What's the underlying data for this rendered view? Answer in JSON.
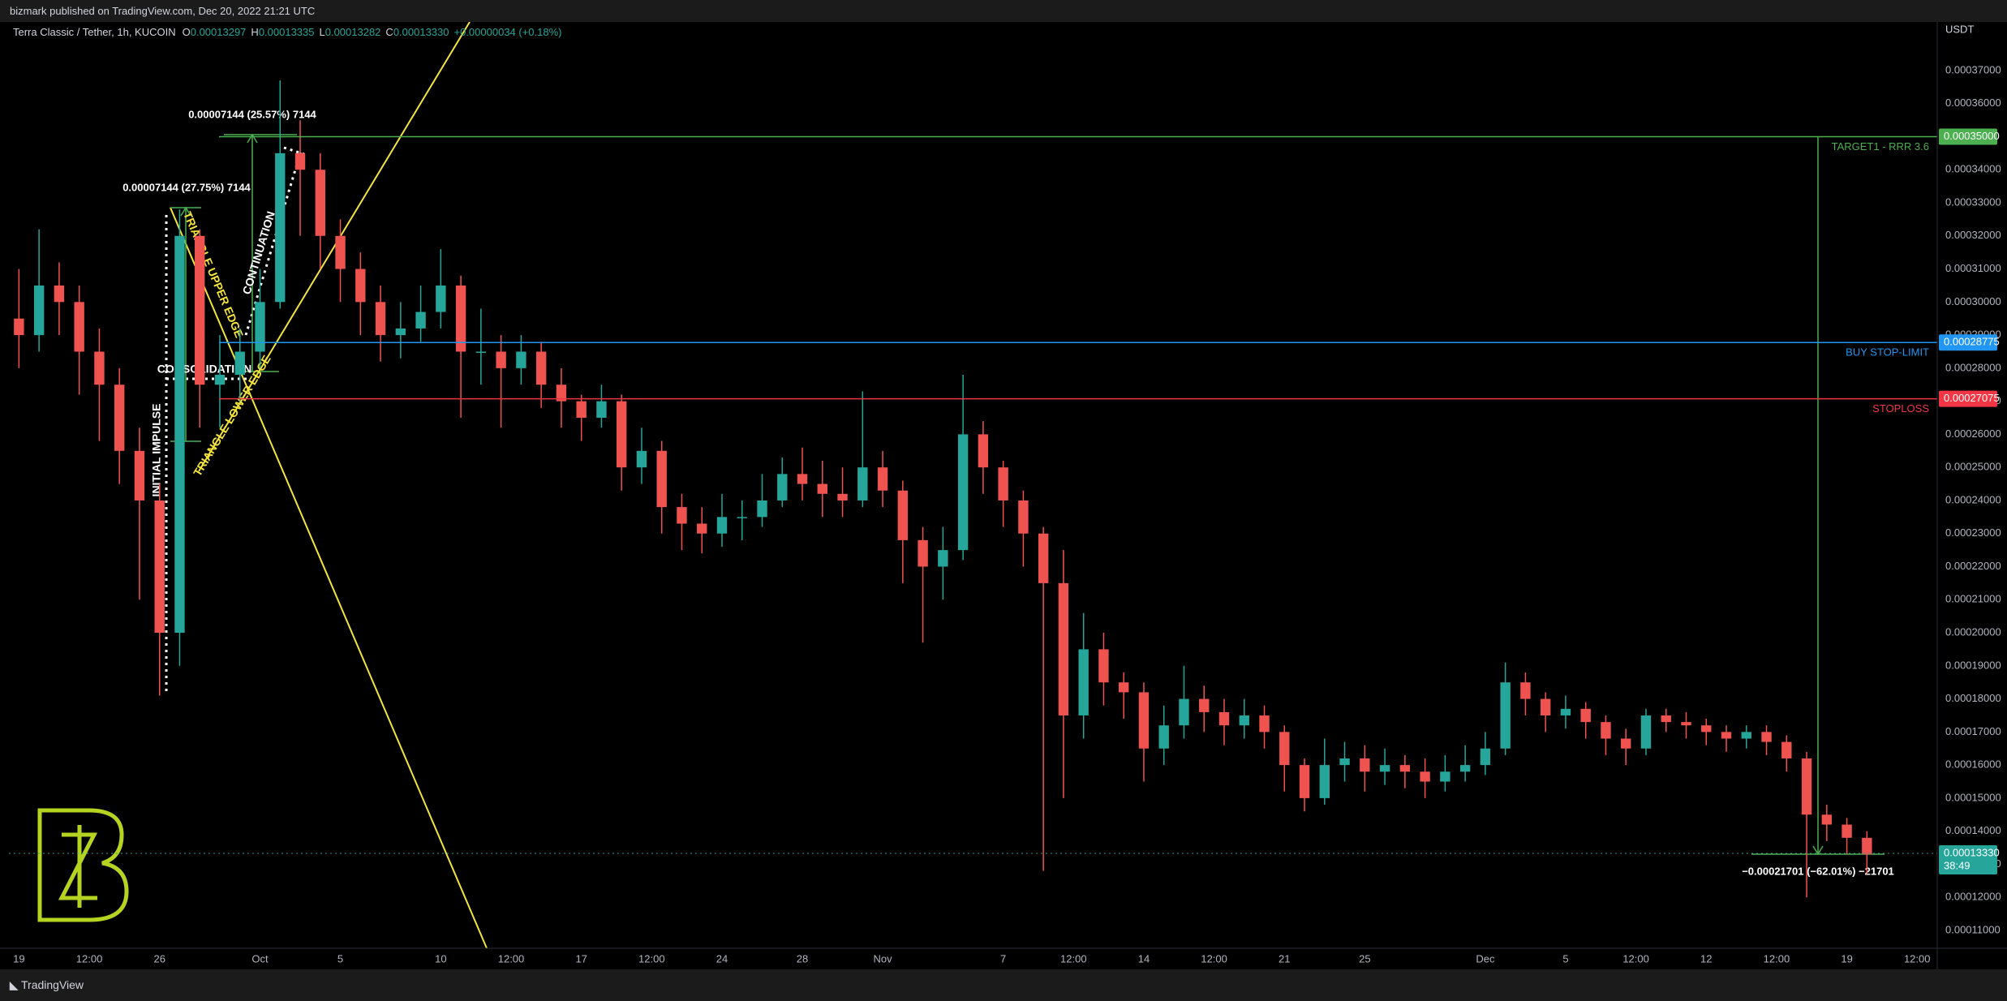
{
  "header": {
    "publisher": "bizmark published on TradingView.com, Dec 20, 2022 21:21 UTC",
    "footer": "TradingView"
  },
  "chart_data": {
    "type": "candlestick",
    "title": "Terra Classic / Tether, 1h, KUCOIN",
    "ohlc_legend": [
      {
        "key": "O",
        "value": "0.00013297"
      },
      {
        "key": "H",
        "value": "0.00013335"
      },
      {
        "key": "L",
        "value": "0.00013282"
      },
      {
        "key": "C",
        "value": "0.00013330"
      }
    ],
    "change": "+0.00000034 (+0.18%)",
    "currency": "USDT",
    "up_color": "#26a69a",
    "down_color": "#ef5350",
    "x": [
      0,
      1,
      2,
      3,
      4,
      5,
      6,
      7,
      8,
      9,
      10,
      11,
      12,
      13,
      14,
      15,
      16,
      17,
      18,
      19,
      20,
      21,
      22,
      23,
      24,
      25,
      26,
      27,
      28,
      29,
      30,
      31,
      32,
      33,
      34,
      35,
      36,
      37,
      38,
      39,
      40,
      41,
      42,
      43,
      44,
      45,
      46,
      47,
      48,
      49,
      50,
      51,
      52,
      53,
      54,
      55,
      56,
      57,
      58,
      59,
      60,
      61,
      62,
      63,
      64,
      65,
      66,
      67,
      68,
      69,
      70,
      71,
      72,
      73,
      74,
      75,
      76,
      77,
      78,
      79,
      80,
      81,
      82,
      83,
      84,
      85,
      86,
      87,
      88,
      89,
      90,
      91,
      92
    ],
    "open": [
      0.000295,
      0.00029,
      0.000305,
      0.0003,
      0.000285,
      0.000275,
      0.000255,
      0.00024,
      0.0002,
      0.00032,
      0.000275,
      0.000278,
      0.000285,
      0.0003,
      0.000345,
      0.00034,
      0.00032,
      0.00031,
      0.0003,
      0.00029,
      0.000292,
      0.000297,
      0.000305,
      0.000285,
      0.000285,
      0.00028,
      0.000285,
      0.000275,
      0.00027,
      0.000265,
      0.00027,
      0.00025,
      0.000255,
      0.000238,
      0.000233,
      0.00023,
      0.000235,
      0.000235,
      0.00024,
      0.000248,
      0.000245,
      0.000242,
      0.00024,
      0.00025,
      0.000243,
      0.000228,
      0.00022,
      0.000225,
      0.00026,
      0.00025,
      0.00024,
      0.00023,
      0.000215,
      0.000175,
      0.000195,
      0.000185,
      0.000182,
      0.000165,
      0.000172,
      0.00018,
      0.000176,
      0.000172,
      0.000175,
      0.00017,
      0.00016,
      0.00015,
      0.00016,
      0.000162,
      0.000158,
      0.00016,
      0.000158,
      0.000155,
      0.000158,
      0.00016,
      0.000165,
      0.000185,
      0.00018,
      0.000175,
      0.000177,
      0.000173,
      0.000168,
      0.000165,
      0.000175,
      0.000173,
      0.000172,
      0.00017,
      0.000168,
      0.00017,
      0.000167,
      0.000162,
      0.000145,
      0.000142,
      0.000138
    ],
    "high": [
      0.00031,
      0.000322,
      0.000312,
      0.000305,
      0.000292,
      0.00028,
      0.000262,
      0.000245,
      0.000328,
      0.000322,
      0.00029,
      0.000292,
      0.00031,
      0.000367,
      0.000355,
      0.000345,
      0.000325,
      0.000315,
      0.000305,
      0.0003,
      0.000305,
      0.000316,
      0.000308,
      0.000298,
      0.00029,
      0.00029,
      0.000288,
      0.00028,
      0.000272,
      0.000275,
      0.000272,
      0.000262,
      0.000258,
      0.000242,
      0.000238,
      0.000242,
      0.00024,
      0.000248,
      0.000253,
      0.000256,
      0.000252,
      0.00025,
      0.000273,
      0.000255,
      0.000246,
      0.000232,
      0.000232,
      0.000278,
      0.000264,
      0.000252,
      0.000243,
      0.000232,
      0.000225,
      0.000206,
      0.0002,
      0.000188,
      0.000185,
      0.000178,
      0.00019,
      0.000184,
      0.00018,
      0.00018,
      0.000178,
      0.000172,
      0.000162,
      0.000168,
      0.000167,
      0.000166,
      0.000165,
      0.000163,
      0.000162,
      0.000163,
      0.000166,
      0.00017,
      0.000191,
      0.000188,
      0.000182,
      0.000181,
      0.000179,
      0.000175,
      0.000171,
      0.000177,
      0.000177,
      0.000176,
      0.000174,
      0.000172,
      0.000172,
      0.000172,
      0.000169,
      0.000164,
      0.000148,
      0.000144,
      0.00014
    ],
    "low": [
      0.00028,
      0.000285,
      0.00029,
      0.000272,
      0.000258,
      0.000245,
      0.00021,
      0.000181,
      0.00019,
      0.000262,
      0.000262,
      0.00027,
      0.00028,
      0.000298,
      0.00032,
      0.00031,
      0.0003,
      0.00029,
      0.000282,
      0.000283,
      0.000288,
      0.000292,
      0.000265,
      0.000275,
      0.000262,
      0.000275,
      0.000268,
      0.000262,
      0.000258,
      0.000262,
      0.000243,
      0.000245,
      0.00023,
      0.000225,
      0.000224,
      0.000226,
      0.000228,
      0.000232,
      0.000238,
      0.00024,
      0.000235,
      0.000235,
      0.000238,
      0.000238,
      0.000215,
      0.000197,
      0.00021,
      0.000222,
      0.000242,
      0.000232,
      0.00022,
      0.000128,
      0.00015,
      0.000168,
      0.000178,
      0.000174,
      0.000155,
      0.00016,
      0.000168,
      0.00017,
      0.000166,
      0.000168,
      0.000165,
      0.000152,
      0.000146,
      0.000148,
      0.000155,
      0.000152,
      0.000154,
      0.000153,
      0.00015,
      0.000152,
      0.000155,
      0.000157,
      0.000163,
      0.000175,
      0.00017,
      0.000171,
      0.000168,
      0.000163,
      0.00016,
      0.000163,
      0.00017,
      0.000168,
      0.000166,
      0.000164,
      0.000165,
      0.000163,
      0.000158,
      0.00012,
      0.000137,
      0.000133,
      0.000127
    ],
    "close": [
      0.00029,
      0.000305,
      0.0003,
      0.000285,
      0.000275,
      0.000255,
      0.00024,
      0.0002,
      0.00032,
      0.000275,
      0.000278,
      0.000285,
      0.0003,
      0.000345,
      0.00034,
      0.00032,
      0.00031,
      0.0003,
      0.00029,
      0.000292,
      0.000297,
      0.000305,
      0.000285,
      0.000285,
      0.00028,
      0.000285,
      0.000275,
      0.00027,
      0.000265,
      0.00027,
      0.00025,
      0.000255,
      0.000238,
      0.000233,
      0.00023,
      0.000235,
      0.000235,
      0.00024,
      0.000248,
      0.000245,
      0.000242,
      0.00024,
      0.00025,
      0.000243,
      0.000228,
      0.00022,
      0.000225,
      0.00026,
      0.00025,
      0.00024,
      0.00023,
      0.000215,
      0.000175,
      0.000195,
      0.000185,
      0.000182,
      0.000165,
      0.000172,
      0.00018,
      0.000176,
      0.000172,
      0.000175,
      0.00017,
      0.00016,
      0.00015,
      0.00016,
      0.000162,
      0.000158,
      0.00016,
      0.000158,
      0.000155,
      0.000158,
      0.00016,
      0.000165,
      0.000185,
      0.00018,
      0.000175,
      0.000177,
      0.000173,
      0.000168,
      0.000165,
      0.000175,
      0.000173,
      0.000172,
      0.00017,
      0.000168,
      0.00017,
      0.000167,
      0.000162,
      0.000145,
      0.000142,
      0.000138,
      0.000133
    ],
    "xlim": [
      -0.5,
      95.5
    ],
    "xticks": [
      {
        "value": 0,
        "label": "19"
      },
      {
        "value": 3.5,
        "label": "12:00"
      },
      {
        "value": 7,
        "label": "26"
      },
      {
        "value": 12,
        "label": "Oct"
      },
      {
        "value": 16,
        "label": "5"
      },
      {
        "value": 21,
        "label": "10"
      },
      {
        "value": 24.5,
        "label": "12:00"
      },
      {
        "value": 28,
        "label": "17"
      },
      {
        "value": 31.5,
        "label": "12:00"
      },
      {
        "value": 35,
        "label": "24"
      },
      {
        "value": 39,
        "label": "28"
      },
      {
        "value": 43,
        "label": "Nov"
      },
      {
        "value": 49,
        "label": "7"
      },
      {
        "value": 52.5,
        "label": "12:00"
      },
      {
        "value": 56,
        "label": "14"
      },
      {
        "value": 59.5,
        "label": "12:00"
      },
      {
        "value": 63,
        "label": "21"
      },
      {
        "value": 67,
        "label": "25"
      },
      {
        "value": 73,
        "label": "Dec"
      },
      {
        "value": 77,
        "label": "5"
      },
      {
        "value": 80.5,
        "label": "12:00"
      },
      {
        "value": 84,
        "label": "12"
      },
      {
        "value": 87.5,
        "label": "12:00"
      },
      {
        "value": 91,
        "label": "19"
      },
      {
        "value": 94.5,
        "label": "12:00"
      }
    ],
    "ylim": [
      0.0001046,
      0.0003847
    ],
    "yticks": [
      {
        "value": 0.00011,
        "label": "0.00011000"
      },
      {
        "value": 0.00012,
        "label": "0.00012000"
      },
      {
        "value": 0.00013,
        "label": "0.00013000"
      },
      {
        "value": 0.00014,
        "label": "0.00014000"
      },
      {
        "value": 0.00015,
        "label": "0.00015000"
      },
      {
        "value": 0.00016,
        "label": "0.00016000"
      },
      {
        "value": 0.00017,
        "label": "0.00017000"
      },
      {
        "value": 0.00018,
        "label": "0.00018000"
      },
      {
        "value": 0.00019,
        "label": "0.00019000"
      },
      {
        "value": 0.0002,
        "label": "0.00020000"
      },
      {
        "value": 0.00021,
        "label": "0.00021000"
      },
      {
        "value": 0.00022,
        "label": "0.00022000"
      },
      {
        "value": 0.00023,
        "label": "0.00023000"
      },
      {
        "value": 0.00024,
        "label": "0.00024000"
      },
      {
        "value": 0.00025,
        "label": "0.00025000"
      },
      {
        "value": 0.00026,
        "label": "0.00026000"
      },
      {
        "value": 0.00027,
        "label": "0.00027000"
      },
      {
        "value": 0.00028,
        "label": "0.00028000"
      },
      {
        "value": 0.00029,
        "label": "0.00029000"
      },
      {
        "value": 0.0003,
        "label": "0.00030000"
      },
      {
        "value": 0.00031,
        "label": "0.00031000"
      },
      {
        "value": 0.00032,
        "label": "0.00032000"
      },
      {
        "value": 0.00033,
        "label": "0.00033000"
      },
      {
        "value": 0.00034,
        "label": "0.00034000"
      },
      {
        "value": 0.00036,
        "label": "0.00036000"
      },
      {
        "value": 0.00037,
        "label": "0.00037000"
      }
    ],
    "levels": [
      {
        "value": 0.00035,
        "label": "0.00035000",
        "name": "TARGET1 - RRR 3.6",
        "color": "#4caf50"
      },
      {
        "value": 0.00028775,
        "label": "0.00028775",
        "name": "BUY STOP-LIMIT",
        "color": "#2196f3"
      },
      {
        "value": 0.00027075,
        "label": "0.00027075",
        "name": "STOPLOSS",
        "color": "#f23645"
      }
    ],
    "last_price": {
      "value": 0.0001333,
      "label": "0.00013330",
      "countdown": "38:49",
      "color": "#26a69a"
    },
    "annotations": {
      "upper_edge": "TRIANGLE UPPER EDGE",
      "lower_edge": "TRIANGLE LOWER EDGE",
      "consolidation": "CONSOLIDATION",
      "impulse": "INITIAL IMPULSE",
      "continuation": "CONTINUATION",
      "measure_impulse": "0.00007144 (27.75%) 7144",
      "measure_continuation": "0.00007144 (25.57%) 7144",
      "measure_target": "−0.00021701 (−62.01%) −21701"
    }
  }
}
